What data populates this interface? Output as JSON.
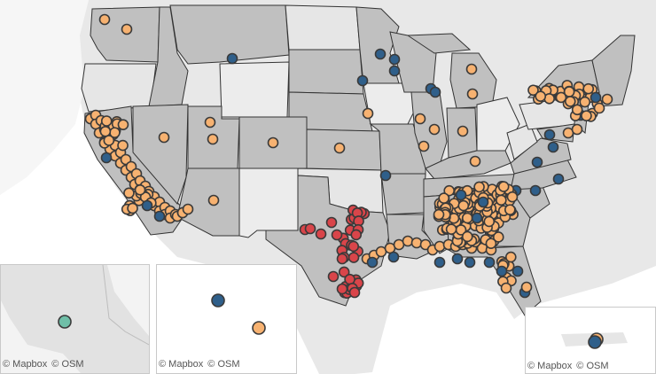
{
  "attribution": {
    "mapbox": "© Mapbox",
    "osm": "© OSM"
  },
  "colors": {
    "ocean": "#ffffff",
    "land": "#e8e8e8",
    "state_fill": "#c0c0c0",
    "state_border": "#333333",
    "highlight_state": "#c3c3c3",
    "marker_orange": "#f7b271",
    "marker_blue": "#2f5f8a",
    "marker_red": "#d9454a",
    "marker_teal": "#6fbfa8",
    "marker_stroke": "#3a3a3a"
  },
  "categories": [
    {
      "name": "orange",
      "color": "#f7b271"
    },
    {
      "name": "blue",
      "color": "#2f5f8a"
    },
    {
      "name": "red",
      "color": "#d9454a"
    },
    {
      "name": "teal",
      "color": "#6fbfa8"
    }
  ],
  "insets": [
    {
      "name": "alaska"
    },
    {
      "name": "hawaii"
    },
    {
      "name": "puerto-rico"
    }
  ]
}
